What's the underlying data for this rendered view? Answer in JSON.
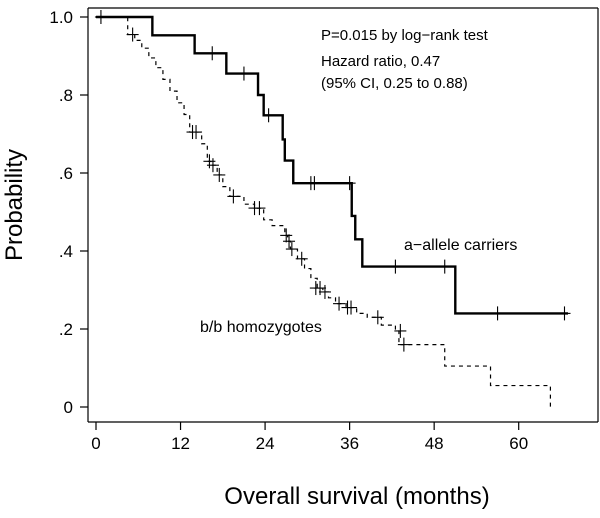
{
  "chart_data": {
    "type": "line",
    "title": "",
    "xlabel": "Overall survival (months)",
    "ylabel": "Probability",
    "xlim": [
      0,
      68
    ],
    "ylim": [
      0,
      1.0
    ],
    "x_ticks": [
      0,
      12,
      24,
      36,
      48,
      60
    ],
    "x_tick_labels": [
      "0",
      "12",
      "24",
      "36",
      "48",
      "60"
    ],
    "y_ticks": [
      0,
      0.2,
      0.4,
      0.6,
      0.8,
      1.0
    ],
    "y_tick_labels": [
      "0",
      ".2",
      ".4",
      ".6",
      ".8",
      "1.0"
    ],
    "annotations": [
      "P=0.015 by log−rank test",
      "Hazard ratio, 0.47",
      "(95% CI, 0.25 to 0.88)"
    ],
    "series": [
      {
        "name": "a−allele carriers",
        "line_style": "solid",
        "steps": [
          [
            0,
            1.0
          ],
          [
            8,
            0.953
          ],
          [
            14,
            0.907
          ],
          [
            18.5,
            0.855
          ],
          [
            23,
            0.8
          ],
          [
            23.8,
            0.748
          ],
          [
            26.5,
            0.686
          ],
          [
            26.8,
            0.632
          ],
          [
            28,
            0.574
          ],
          [
            36.3,
            0.49
          ],
          [
            36.8,
            0.43
          ],
          [
            37.8,
            0.36
          ],
          [
            51,
            0.24
          ],
          [
            67,
            0.24
          ]
        ],
        "censored": [
          [
            0.7,
            1.0
          ],
          [
            16.5,
            0.907
          ],
          [
            21,
            0.855
          ],
          [
            24.5,
            0.748
          ],
          [
            30.5,
            0.574
          ],
          [
            31,
            0.574
          ],
          [
            36,
            0.574
          ],
          [
            42.5,
            0.36
          ],
          [
            49.5,
            0.36
          ],
          [
            57,
            0.24
          ],
          [
            66.5,
            0.24
          ]
        ]
      },
      {
        "name": "b/b homozygotes",
        "line_style": "dashed",
        "steps": [
          [
            0,
            1.0
          ],
          [
            4.5,
            0.955
          ],
          [
            5.5,
            0.94
          ],
          [
            6.5,
            0.92
          ],
          [
            7.5,
            0.895
          ],
          [
            8.5,
            0.87
          ],
          [
            9.5,
            0.84
          ],
          [
            10.5,
            0.81
          ],
          [
            11.5,
            0.78
          ],
          [
            12.5,
            0.75
          ],
          [
            13.3,
            0.705
          ],
          [
            15,
            0.675
          ],
          [
            15.8,
            0.63
          ],
          [
            16.3,
            0.62
          ],
          [
            17.2,
            0.595
          ],
          [
            18,
            0.565
          ],
          [
            19,
            0.54
          ],
          [
            21,
            0.52
          ],
          [
            22.5,
            0.51
          ],
          [
            23.8,
            0.48
          ],
          [
            25,
            0.465
          ],
          [
            26.8,
            0.44
          ],
          [
            27.2,
            0.425
          ],
          [
            27.6,
            0.405
          ],
          [
            28.6,
            0.38
          ],
          [
            29.6,
            0.355
          ],
          [
            30.5,
            0.33
          ],
          [
            31.4,
            0.305
          ],
          [
            32.2,
            0.295
          ],
          [
            33,
            0.28
          ],
          [
            34,
            0.265
          ],
          [
            35.5,
            0.255
          ],
          [
            37,
            0.24
          ],
          [
            38.5,
            0.23
          ],
          [
            40.5,
            0.21
          ],
          [
            42.5,
            0.195
          ],
          [
            43,
            0.16
          ],
          [
            49.5,
            0.105
          ],
          [
            56,
            0.055
          ],
          [
            64.5,
            0.0
          ]
        ],
        "censored": [
          [
            5.2,
            0.955
          ],
          [
            13.7,
            0.705
          ],
          [
            14.2,
            0.705
          ],
          [
            16.1,
            0.63
          ],
          [
            16.6,
            0.62
          ],
          [
            17.5,
            0.595
          ],
          [
            19.5,
            0.54
          ],
          [
            22.5,
            0.51
          ],
          [
            23.2,
            0.51
          ],
          [
            27,
            0.44
          ],
          [
            27.4,
            0.425
          ],
          [
            27.8,
            0.405
          ],
          [
            29.2,
            0.38
          ],
          [
            31.2,
            0.305
          ],
          [
            31.8,
            0.305
          ],
          [
            32.5,
            0.295
          ],
          [
            34.5,
            0.265
          ],
          [
            35.7,
            0.255
          ],
          [
            36.2,
            0.255
          ],
          [
            40,
            0.23
          ],
          [
            43.2,
            0.195
          ],
          [
            43.7,
            0.16
          ]
        ]
      }
    ]
  }
}
